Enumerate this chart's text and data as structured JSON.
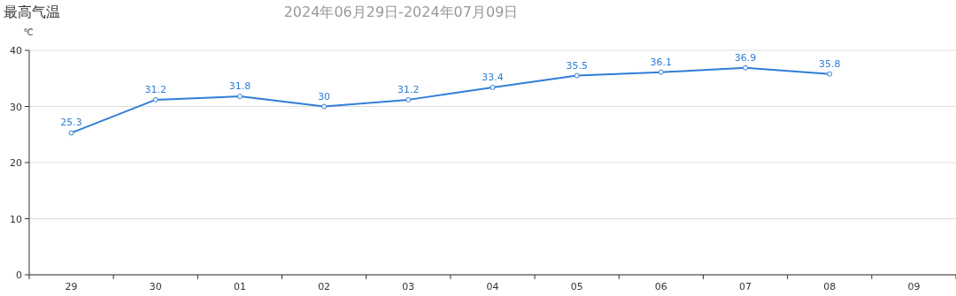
{
  "chart_data": {
    "type": "line",
    "title": "最高气温",
    "subtitle": "2024年06月29日-2024年07月09日",
    "ylabel": "℃",
    "categories": [
      "29",
      "30",
      "01",
      "02",
      "03",
      "04",
      "05",
      "06",
      "07",
      "08",
      "09"
    ],
    "series": [
      {
        "color": "#2f7ed8",
        "values": [
          25.3,
          31.2,
          31.8,
          30,
          31.2,
          33.4,
          35.5,
          36.1,
          36.9,
          35.8,
          null
        ]
      }
    ],
    "ylim": [
      0,
      40
    ],
    "yticks": [
      0,
      10,
      20,
      30,
      40
    ],
    "grid": "y",
    "marker": "circle",
    "data_labels": true
  }
}
